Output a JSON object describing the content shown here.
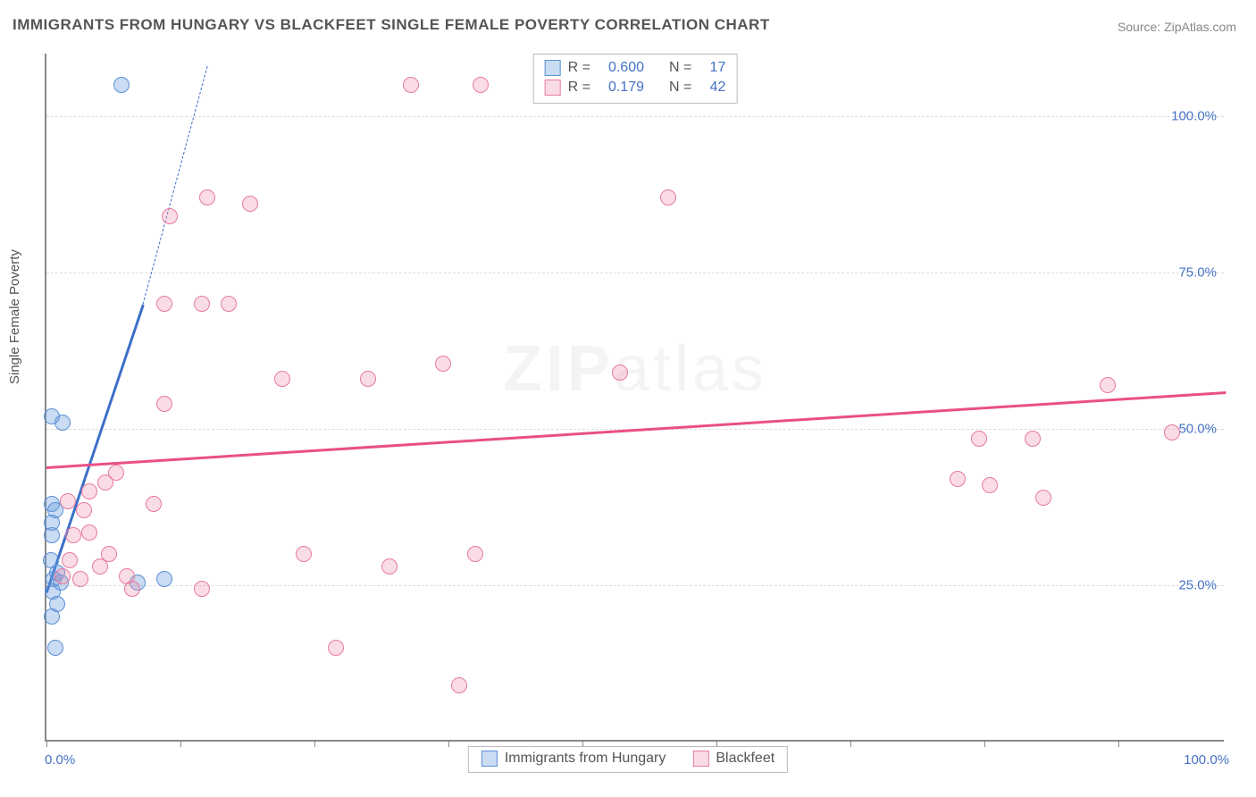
{
  "title": "IMMIGRANTS FROM HUNGARY VS BLACKFEET SINGLE FEMALE POVERTY CORRELATION CHART",
  "source": "Source: ZipAtlas.com",
  "ylabel": "Single Female Poverty",
  "watermark_bold": "ZIP",
  "watermark_thin": "atlas",
  "chart": {
    "type": "scatter",
    "background_color": "#ffffff",
    "grid_color": "#dddddd",
    "axis_color": "#888888",
    "xlim": [
      0,
      110
    ],
    "ylim": [
      0,
      110
    ],
    "xticks": [
      0,
      12.5,
      25,
      37.5,
      50,
      62.5,
      75,
      87.5,
      100
    ],
    "xtick_labels": {
      "0": "0.0%",
      "100": "100.0%"
    },
    "yticks": [
      25,
      50,
      75,
      100
    ],
    "ytick_labels": {
      "25": "25.0%",
      "50": "50.0%",
      "75": "75.0%",
      "100": "100.0%"
    },
    "marker_radius": 9,
    "series": [
      {
        "name": "Immigrants from Hungary",
        "fill": "rgba(100,155,220,0.35)",
        "stroke": "#5b8fd6",
        "R": "0.600",
        "N": "17",
        "trend": {
          "x1": 0,
          "y1": 24,
          "x2": 9,
          "y2": 70,
          "dash_to_x": 15,
          "dash_to_y": 108,
          "color": "#3b6fc9"
        },
        "points": [
          [
            0.5,
            52
          ],
          [
            1.5,
            51
          ],
          [
            0.5,
            38
          ],
          [
            0.8,
            37
          ],
          [
            0.5,
            35
          ],
          [
            0.5,
            33
          ],
          [
            0.4,
            29
          ],
          [
            1.0,
            27
          ],
          [
            0.7,
            26
          ],
          [
            1.3,
            25.5
          ],
          [
            0.6,
            24
          ],
          [
            1.0,
            22
          ],
          [
            0.5,
            20
          ],
          [
            0.8,
            15
          ],
          [
            8.5,
            25.5
          ],
          [
            11.0,
            26
          ],
          [
            7.0,
            105
          ]
        ]
      },
      {
        "name": "Blackfeet",
        "fill": "rgba(240,140,170,0.30)",
        "stroke": "#e77aa0",
        "R": "0.179",
        "N": "42",
        "trend": {
          "x1": 0,
          "y1": 44,
          "x2": 110,
          "y2": 56,
          "color": "#e94f86"
        },
        "points": [
          [
            2,
            38.5
          ],
          [
            3.5,
            37
          ],
          [
            4,
            40
          ],
          [
            5.5,
            41.5
          ],
          [
            5,
            28
          ],
          [
            2.5,
            33
          ],
          [
            4,
            33.5
          ],
          [
            2.2,
            29
          ],
          [
            5.8,
            30
          ],
          [
            7.5,
            26.5
          ],
          [
            8,
            24.5
          ],
          [
            10,
            38
          ],
          [
            11,
            54
          ],
          [
            11,
            70
          ],
          [
            11.5,
            84
          ],
          [
            14.5,
            70
          ],
          [
            14.5,
            24.5
          ],
          [
            15,
            87
          ],
          [
            17,
            70
          ],
          [
            19,
            86
          ],
          [
            22,
            58
          ],
          [
            24,
            30
          ],
          [
            27,
            15
          ],
          [
            30,
            58
          ],
          [
            32,
            28
          ],
          [
            34,
            105
          ],
          [
            37,
            60.5
          ],
          [
            38.5,
            9
          ],
          [
            40,
            30
          ],
          [
            40.5,
            105
          ],
          [
            53.5,
            59
          ],
          [
            58,
            87
          ],
          [
            85,
            42
          ],
          [
            87,
            48.5
          ],
          [
            88,
            41
          ],
          [
            92,
            48.5
          ],
          [
            93,
            39
          ],
          [
            99,
            57
          ],
          [
            105,
            49.5
          ],
          [
            1.5,
            26.5
          ],
          [
            3.2,
            26
          ],
          [
            6.5,
            43
          ]
        ]
      }
    ]
  },
  "legend_top_prefix_r": "R =",
  "legend_top_prefix_n": "N ="
}
